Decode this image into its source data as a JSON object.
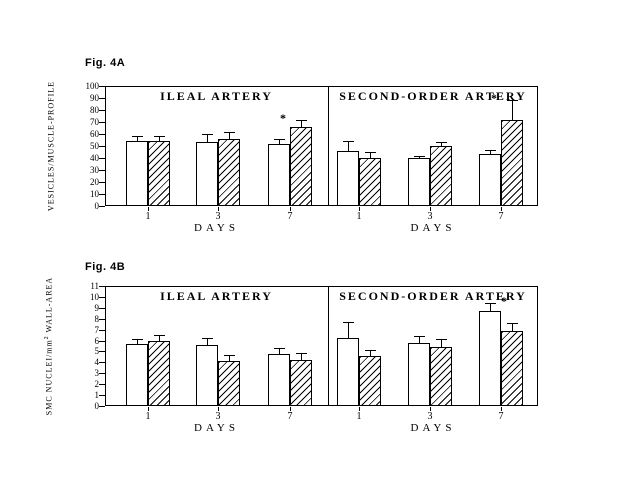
{
  "figure": {
    "background": "#ffffff",
    "ink": "#000000",
    "sig_marker": "*"
  },
  "chart_data": [
    {
      "id": "4A",
      "fig_label": "Fig. 4A",
      "type": "bar",
      "xlabel": "DAYS",
      "ylabel": "VESICLES/MUSCLE-PROFILE",
      "ylabel_parts": {
        "prefix": "VESICLES/MUSCLE-PROFILE",
        "sup": "",
        "suffix": ""
      },
      "ylim": [
        0,
        100
      ],
      "yticks": [
        0,
        10,
        20,
        30,
        40,
        50,
        60,
        70,
        80,
        90,
        100
      ],
      "categories": [
        "1",
        "3",
        "7"
      ],
      "grid": false,
      "legend": "none",
      "panels": [
        {
          "title": "ILEAL ARTERY",
          "series": [
            {
              "name": "open",
              "style": "open",
              "values": [
                54,
                53,
                52
              ],
              "errors": [
                4,
                7,
                4
              ]
            },
            {
              "name": "hatched",
              "style": "hatched",
              "values": [
                54,
                56,
                66
              ],
              "errors": [
                4,
                6,
                6
              ]
            }
          ]
        },
        {
          "title": "SECOND-ORDER ARTERY",
          "series": [
            {
              "name": "open",
              "style": "open",
              "values": [
                46,
                40,
                43
              ],
              "errors": [
                8,
                2,
                4
              ]
            },
            {
              "name": "hatched",
              "style": "hatched",
              "values": [
                40,
                50,
                72
              ],
              "errors": [
                5,
                3,
                16
              ]
            }
          ]
        }
      ],
      "annotations": [
        {
          "panel": 0,
          "category_index": 2,
          "series": "hatched",
          "marker": "*"
        },
        {
          "panel": 1,
          "category_index": 2,
          "series": "hatched",
          "marker": "*"
        }
      ]
    },
    {
      "id": "4B",
      "fig_label": "Fig. 4B",
      "type": "bar",
      "xlabel": "DAYS",
      "ylabel": "SMC NUCLEI/mm2 WALL-AREA",
      "ylabel_parts": {
        "prefix": "SMC NUCLEI/mm",
        "sup": "2",
        "suffix": " WALL-AREA"
      },
      "ylim": [
        0,
        11
      ],
      "yticks": [
        0,
        1,
        2,
        3,
        4,
        5,
        6,
        7,
        8,
        9,
        10,
        11
      ],
      "categories": [
        "1",
        "3",
        "7"
      ],
      "grid": false,
      "legend": "none",
      "panels": [
        {
          "title": "ILEAL ARTERY",
          "series": [
            {
              "name": "open",
              "style": "open",
              "values": [
                5.7,
                5.6,
                4.8
              ],
              "errors": [
                0.4,
                0.6,
                0.5
              ]
            },
            {
              "name": "hatched",
              "style": "hatched",
              "values": [
                6.0,
                4.1,
                4.2
              ],
              "errors": [
                0.5,
                0.6,
                0.7
              ]
            }
          ]
        },
        {
          "title": "SECOND-ORDER ARTERY",
          "series": [
            {
              "name": "open",
              "style": "open",
              "values": [
                6.2,
                5.8,
                8.7
              ],
              "errors": [
                1.5,
                0.6,
                0.7
              ]
            },
            {
              "name": "hatched",
              "style": "hatched",
              "values": [
                4.6,
                5.4,
                6.9
              ],
              "errors": [
                0.5,
                0.7,
                0.7
              ]
            }
          ]
        }
      ],
      "annotations": [
        {
          "panel": 1,
          "category_index": 2,
          "series": "open",
          "marker": "*"
        }
      ]
    }
  ]
}
